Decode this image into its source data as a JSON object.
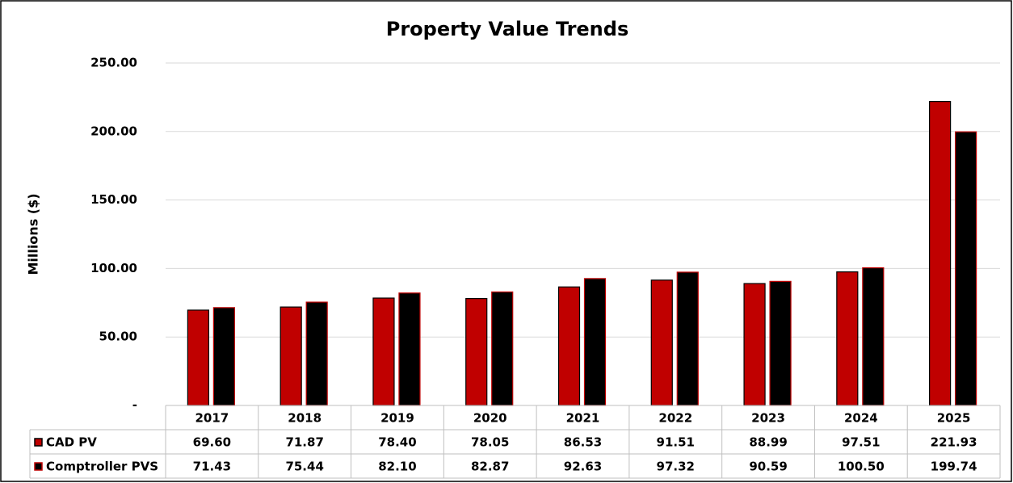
{
  "chart_data": {
    "type": "bar",
    "title": "Property Value Trends",
    "ylabel": "Millions ($)",
    "categories": [
      "2017",
      "2018",
      "2019",
      "2020",
      "2021",
      "2022",
      "2023",
      "2024",
      "2025"
    ],
    "series": [
      {
        "name": "CAD PV",
        "color": "#c00000",
        "edgecolor": "#000000",
        "values": [
          69.6,
          71.87,
          78.4,
          78.05,
          86.53,
          91.51,
          88.99,
          97.51,
          221.93
        ],
        "value_labels": [
          "69.60",
          "71.87",
          "78.40",
          "78.05",
          "86.53",
          "91.51",
          "88.99",
          "97.51",
          "221.93"
        ]
      },
      {
        "name": "Comptroller PVS",
        "color": "#000000",
        "edgecolor": "#c00000",
        "values": [
          71.43,
          75.44,
          82.1,
          82.87,
          92.63,
          97.32,
          90.59,
          100.5,
          199.74
        ],
        "value_labels": [
          "71.43",
          "75.44",
          "82.10",
          "82.87",
          "92.63",
          "97.32",
          "90.59",
          "100.50",
          "199.74"
        ]
      }
    ],
    "ylim": [
      0,
      250
    ],
    "yticks": [
      {
        "value": 0,
        "label": "-"
      },
      {
        "value": 50,
        "label": "50.00"
      },
      {
        "value": 100,
        "label": "100.00"
      },
      {
        "value": 150,
        "label": "150.00"
      },
      {
        "value": 200,
        "label": "200.00"
      },
      {
        "value": 250,
        "label": "250.00"
      }
    ],
    "grid": true
  }
}
